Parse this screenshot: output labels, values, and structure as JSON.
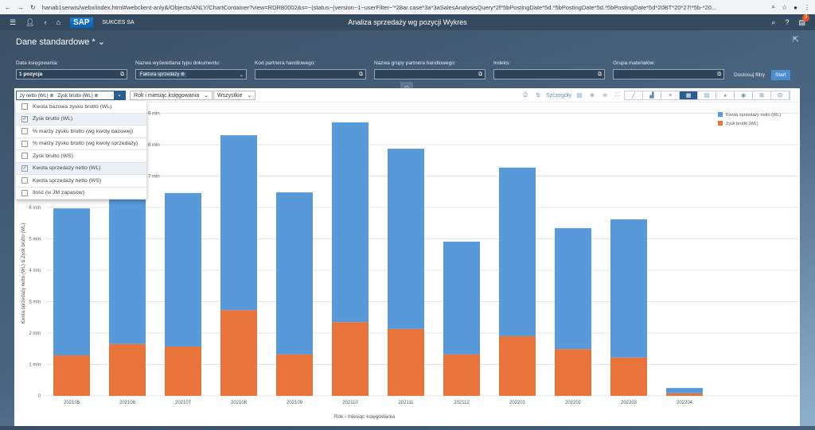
{
  "browser": {
    "url": "hanab1serwis/webx/index.html#webclient-anly&/Objects/ANLY/ChartContainer?view=RDR80002&s=~(status~(version~1~userFilter~'*28ar.case*3a*3aSalesAnalysisQuery*2f*5bPostingDate*5d.*5bPostingDate*5d.*5bPostingDate*5d*20BT*20*27!*5b-*20..."
  },
  "shell": {
    "company": "SUKCES SA",
    "title": "Analiza sprzedaży wg pozycji Wykres",
    "notifications": "3"
  },
  "variant": "Dane standardowe *",
  "filters": [
    {
      "label": "Data księgowania:",
      "value": "1 pozycja"
    },
    {
      "label": "Nazwa wyświetlana typu dokumentu:",
      "value": "Faktura sprzedaży ⊗"
    },
    {
      "label": "Kod partnera handlowego:",
      "value": ""
    },
    {
      "label": "Nazwa grupy partnera handlowego:",
      "value": ""
    },
    {
      "label": "Indeks:",
      "value": ""
    },
    {
      "label": "Grupa materiałów:",
      "value": ""
    }
  ],
  "filter_buttons": {
    "adapt": "Dostosuj filtry",
    "start": "Start"
  },
  "toolbar": {
    "measures_tokens": "ży netto (WL) ⊗   Zysk brutto (WL) ⊗",
    "dimension": "Rok i miesiąc księgowania",
    "scope": "Wszystkie",
    "details": "Szczegóły"
  },
  "measures_list": [
    {
      "label": "Kwota bazowa zysku brutto (WL)",
      "checked": false
    },
    {
      "label": "Zysk brutto (WL)",
      "checked": true
    },
    {
      "label": "% marży zysku brutto (wg kwoty bazowej)",
      "checked": false
    },
    {
      "label": "% marży zysku brutto (wg kwoty sprzedaży)",
      "checked": false
    },
    {
      "label": "Zysk brutto (WS)",
      "checked": false
    },
    {
      "label": "Kwota sprzedaży netto (WL)",
      "checked": true
    },
    {
      "label": "Kwota sprzedaży netto (WS)",
      "checked": false
    },
    {
      "label": "Ilość (w JM zapasów)",
      "checked": false
    }
  ],
  "chart_data": {
    "type": "bar",
    "stacked": true,
    "categories": [
      "202105",
      "202106",
      "202107",
      "202108",
      "202109",
      "202110",
      "202111",
      "202112",
      "202201",
      "202202",
      "202203",
      "202204"
    ],
    "series": [
      {
        "name": "Zysk brutto (WL)",
        "color": "#e8743b",
        "values": [
          1.29,
          1.65,
          1.57,
          2.73,
          1.32,
          2.35,
          2.13,
          1.32,
          1.9,
          1.49,
          1.22,
          0.08
        ]
      },
      {
        "name": "Kwota sprzedaży netto (WL)",
        "color": "#5899da",
        "values": [
          4.68,
          4.75,
          4.89,
          5.57,
          5.16,
          6.36,
          5.74,
          3.59,
          5.37,
          3.85,
          4.4,
          0.17
        ]
      }
    ],
    "xlabel": "Rok i miesiąc księgowania",
    "ylabel": "Kwota sprzedaży netto (WL) & Zysk brutto (WL)",
    "yticks": [
      "0",
      "1 mln",
      "2 mln",
      "3 mln",
      "4 mln",
      "5 mln",
      "6 mln",
      "7 mln",
      "8 mln",
      "9 mln"
    ],
    "ylim": [
      0,
      9
    ],
    "legend": "top-right",
    "legend_order": [
      "Kwota sprzedaży netto (WL)",
      "Zysk brutto (WL)"
    ]
  }
}
